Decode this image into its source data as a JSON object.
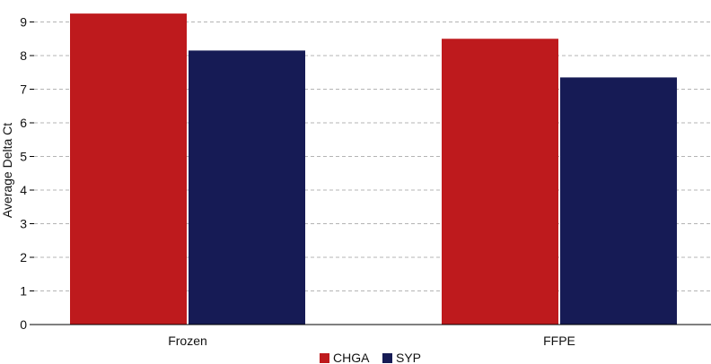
{
  "chart_data": {
    "type": "bar",
    "categories": [
      "Frozen",
      "FFPE"
    ],
    "series": [
      {
        "name": "CHGA",
        "color": "#be1a1d",
        "values": [
          9.25,
          8.5
        ]
      },
      {
        "name": "SYP",
        "color": "#161b55",
        "values": [
          8.15,
          7.35
        ]
      }
    ],
    "ylabel": "Average Delta Ct",
    "xlabel": "",
    "ylim": [
      0,
      9.5
    ],
    "yticks": [
      0,
      1,
      2,
      3,
      4,
      5,
      6,
      7,
      8,
      9
    ],
    "grid": true,
    "legend": "bottom-center"
  }
}
